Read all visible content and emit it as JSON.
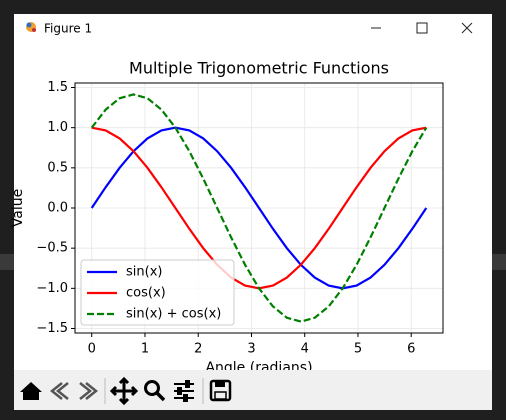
{
  "window": {
    "title": "Figure 1"
  },
  "chart_data": {
    "type": "line",
    "title": "Multiple Trigonometric Functions",
    "x_label": "Angle (radians)",
    "y_label": "Value",
    "x": [
      0,
      0.262,
      0.524,
      0.785,
      1.047,
      1.309,
      1.571,
      1.833,
      2.094,
      2.356,
      2.618,
      2.88,
      3.142,
      3.403,
      3.665,
      3.927,
      4.189,
      4.451,
      4.712,
      4.974,
      5.236,
      5.498,
      5.76,
      6.021,
      6.283
    ],
    "series": [
      {
        "name": "sin(x)",
        "color": "#0000ff",
        "linestyle": "solid",
        "values": [
          0,
          0.259,
          0.5,
          0.707,
          0.866,
          0.966,
          1,
          0.966,
          0.866,
          0.707,
          0.5,
          0.259,
          0,
          -0.259,
          -0.5,
          -0.707,
          -0.866,
          -0.966,
          -1,
          -0.966,
          -0.866,
          -0.707,
          -0.5,
          -0.259,
          0
        ]
      },
      {
        "name": "cos(x)",
        "color": "#ff0000",
        "linestyle": "solid",
        "values": [
          1,
          0.966,
          0.866,
          0.707,
          0.5,
          0.259,
          0,
          -0.259,
          -0.5,
          -0.707,
          -0.866,
          -0.966,
          -1,
          -0.966,
          -0.866,
          -0.707,
          -0.5,
          -0.259,
          0,
          0.259,
          0.5,
          0.707,
          0.866,
          0.966,
          1
        ]
      },
      {
        "name": "sin(x) + cos(x)",
        "color": "#008000",
        "linestyle": "dashed",
        "values": [
          1,
          1.225,
          1.366,
          1.414,
          1.366,
          1.225,
          1,
          0.707,
          0.366,
          0,
          -0.366,
          -0.707,
          -1,
          -1.225,
          -1.366,
          -1.414,
          -1.366,
          -1.225,
          -1,
          -0.707,
          -0.366,
          0,
          0.366,
          0.707,
          1
        ]
      }
    ],
    "xlim": [
      -0.314,
      6.597
    ],
    "ylim": [
      -1.556,
      1.556
    ],
    "xticks": [
      0,
      1,
      2,
      3,
      4,
      5,
      6
    ],
    "yticks": [
      {
        "value": -1.5,
        "label": "−1.5"
      },
      {
        "value": -1,
        "label": "−1.0"
      },
      {
        "value": -0.5,
        "label": "−0.5"
      },
      {
        "value": 0,
        "label": "0.0"
      },
      0.5,
      {
        "value": 1,
        "label": "1.0"
      },
      1.5
    ],
    "grid": true,
    "legend": "lower left"
  }
}
